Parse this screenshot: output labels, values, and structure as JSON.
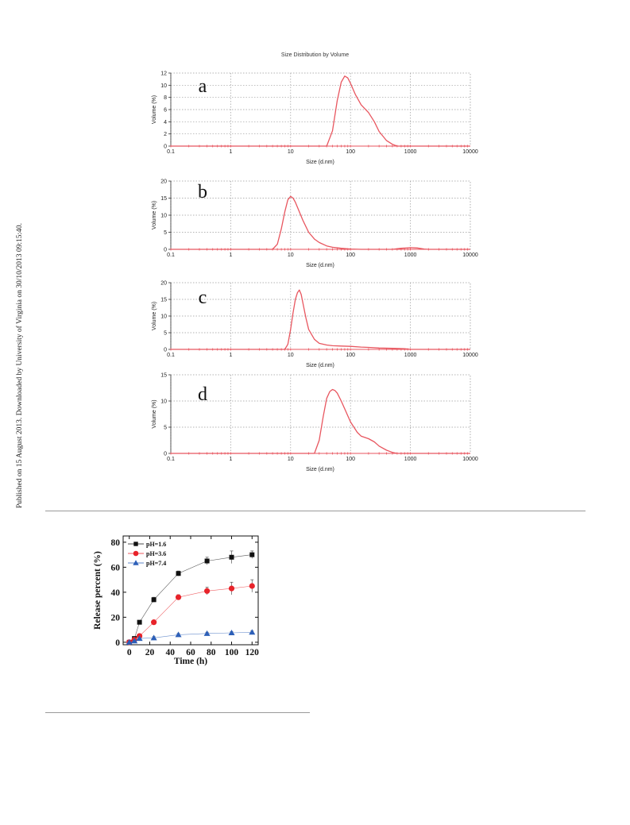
{
  "stamp": "Published on 15 August 2013. Downloaded by University of Virginia on 30/10/2013 09:15:40.",
  "chart_data": [
    {
      "type": "line",
      "panel": "a",
      "title": "Size Distribution by Volume",
      "xlabel": "Size (d.nm)",
      "ylabel": "Volume (%)",
      "xscale": "log",
      "xlim": [
        0.1,
        10000
      ],
      "ylim": [
        0,
        12
      ],
      "x_ticks": [
        "0.1",
        "1",
        "10",
        "100",
        "1000",
        "10000"
      ],
      "y_ticks": [
        "0",
        "2",
        "4",
        "6",
        "8",
        "10",
        "12"
      ],
      "grid": true,
      "line_color": "#e8565f",
      "x": [
        0.1,
        40,
        50,
        60,
        70,
        80,
        90,
        100,
        120,
        150,
        200,
        250,
        300,
        400,
        500,
        600,
        10000
      ],
      "y": [
        0,
        0,
        2.5,
        7.5,
        10.5,
        11.5,
        11.2,
        10.3,
        8.5,
        6.8,
        5.5,
        4.0,
        2.4,
        0.9,
        0.3,
        0,
        0
      ]
    },
    {
      "type": "line",
      "panel": "b",
      "xlabel": "Size (d.nm)",
      "ylabel": "Volume (%)",
      "xscale": "log",
      "xlim": [
        0.1,
        10000
      ],
      "ylim": [
        0,
        20
      ],
      "x_ticks": [
        "0.1",
        "1",
        "10",
        "100",
        "1000",
        "10000"
      ],
      "y_ticks": [
        "0",
        "5",
        "10",
        "15",
        "20"
      ],
      "grid": true,
      "line_color": "#e8565f",
      "x": [
        0.1,
        5,
        6,
        7,
        8,
        9,
        10,
        11,
        12,
        14,
        16,
        20,
        25,
        30,
        40,
        50,
        70,
        100,
        150,
        500,
        700,
        1000,
        1300,
        1700,
        2000,
        10000
      ],
      "y": [
        0,
        0,
        1.5,
        6,
        11,
        14.5,
        15.5,
        15,
        13.8,
        11,
        8.5,
        5,
        3,
        2,
        1,
        0.6,
        0.3,
        0.1,
        0,
        0,
        0.3,
        0.5,
        0.4,
        0.1,
        0,
        0
      ]
    },
    {
      "type": "line",
      "panel": "c",
      "xlabel": "Size (d.nm)",
      "ylabel": "Volume (%)",
      "xscale": "log",
      "xlim": [
        0.1,
        10000
      ],
      "ylim": [
        0,
        20
      ],
      "x_ticks": [
        "0.1",
        "1",
        "10",
        "100",
        "1000",
        "10000"
      ],
      "y_ticks": [
        "0",
        "5",
        "10",
        "15",
        "20"
      ],
      "grid": true,
      "line_color": "#e8565f",
      "x": [
        0.1,
        8,
        9,
        10,
        11,
        12,
        13,
        14,
        15,
        16,
        18,
        20,
        25,
        30,
        40,
        50,
        70,
        100,
        150,
        200,
        300,
        500,
        800,
        1000,
        10000
      ],
      "y": [
        0,
        0,
        1.5,
        6,
        11,
        15,
        17,
        17.8,
        16.5,
        14,
        9.5,
        6,
        3,
        1.8,
        1.3,
        1.1,
        1.0,
        0.9,
        0.7,
        0.6,
        0.4,
        0.3,
        0.2,
        0,
        0
      ]
    },
    {
      "type": "line",
      "panel": "d",
      "xlabel": "Size (d.nm)",
      "ylabel": "Volume (%)",
      "xscale": "log",
      "xlim": [
        0.1,
        10000
      ],
      "ylim": [
        0,
        15
      ],
      "x_ticks": [
        "0.1",
        "1",
        "10",
        "100",
        "1000",
        "10000"
      ],
      "y_ticks": [
        "0",
        "5",
        "10",
        "15"
      ],
      "grid": true,
      "line_color": "#e8565f",
      "x": [
        0.1,
        25,
        30,
        35,
        40,
        45,
        50,
        55,
        60,
        70,
        80,
        100,
        130,
        150,
        200,
        250,
        300,
        400,
        500,
        600,
        10000
      ],
      "y": [
        0,
        0,
        2.5,
        7,
        10.5,
        11.8,
        12.2,
        12.0,
        11.5,
        10,
        8.5,
        6,
        4.0,
        3.3,
        2.8,
        2.2,
        1.4,
        0.6,
        0.2,
        0,
        0
      ]
    },
    {
      "type": "line",
      "xlabel": "Time (h)",
      "ylabel": "Release percent (%)",
      "xlim": [
        -6,
        126
      ],
      "ylim": [
        -2,
        85
      ],
      "x_ticks": [
        "0",
        "20",
        "40",
        "60",
        "80",
        "100",
        "120"
      ],
      "y_ticks": [
        "0",
        "20",
        "40",
        "60",
        "80"
      ],
      "legend": "top-left",
      "grid": false,
      "x": [
        0,
        5,
        10,
        24,
        48,
        76,
        100,
        120
      ],
      "series": [
        {
          "name": "pH=1.6",
          "color": "#111111",
          "marker": "square",
          "values": [
            0,
            3,
            16,
            34,
            55,
            65,
            68,
            70
          ],
          "errors": [
            0,
            1,
            1,
            2,
            2,
            3,
            5,
            3
          ]
        },
        {
          "name": "pH=3.6",
          "color": "#e8232a",
          "marker": "circle",
          "values": [
            0,
            2,
            5,
            16,
            36,
            41,
            43,
            45
          ],
          "errors": [
            0,
            1,
            1,
            1,
            2,
            3,
            5,
            5
          ]
        },
        {
          "name": "pH=7.4",
          "color": "#2c5fb8",
          "marker": "triangle",
          "values": [
            0,
            1,
            3,
            3.5,
            6,
            7,
            7.5,
            8
          ],
          "errors": [
            0,
            0.5,
            0.5,
            1,
            1,
            1,
            1,
            1
          ]
        }
      ]
    }
  ]
}
